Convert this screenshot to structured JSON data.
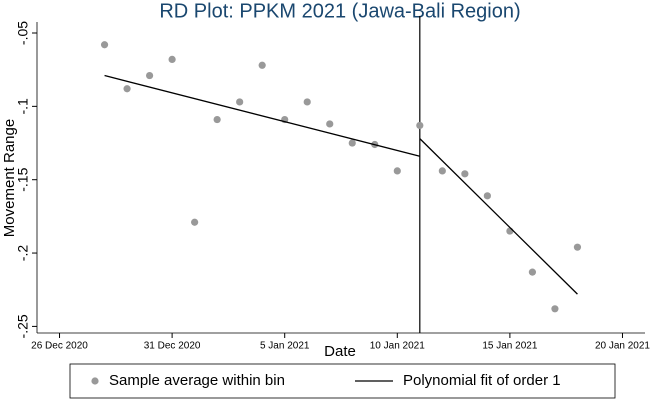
{
  "chart_data": {
    "type": "scatter",
    "title": "RD Plot: PPKM 2021 (Jawa-Bali Region)",
    "xlabel": "Date",
    "ylabel": "Movement Range",
    "xlim": [
      "2020-12-25",
      "2021-01-21"
    ],
    "xticks": [
      {
        "value": "2020-12-26",
        "label": "26 Dec 2020"
      },
      {
        "value": "2020-12-31",
        "label": "31 Dec 2020"
      },
      {
        "value": "2021-01-05",
        "label": "5 Jan 2021"
      },
      {
        "value": "2021-01-10",
        "label": "10 Jan 2021"
      },
      {
        "value": "2021-01-15",
        "label": "15 Jan 2021"
      },
      {
        "value": "2021-01-20",
        "label": "20 Jan 2021"
      }
    ],
    "ylim": [
      -0.2545,
      -0.0425
    ],
    "yticks": [
      {
        "value": -0.05,
        "label": "-.05"
      },
      {
        "value": -0.1,
        "label": "-.1"
      },
      {
        "value": -0.15,
        "label": "-.15"
      },
      {
        "value": -0.2,
        "label": "-.2"
      },
      {
        "value": -0.25,
        "label": "-.25"
      }
    ],
    "cutoff": "2021-01-11",
    "series": [
      {
        "name": "Sample average within bin",
        "color": "#999999",
        "kind": "points",
        "x": [
          "2020-12-28",
          "2020-12-29",
          "2020-12-30",
          "2020-12-31",
          "2021-01-01",
          "2021-01-02",
          "2021-01-03",
          "2021-01-04",
          "2021-01-05",
          "2021-01-06",
          "2021-01-07",
          "2021-01-08",
          "2021-01-09",
          "2021-01-10",
          "2021-01-11",
          "2021-01-12",
          "2021-01-13",
          "2021-01-14",
          "2021-01-15",
          "2021-01-16",
          "2021-01-17",
          "2021-01-18"
        ],
        "values": [
          -0.058,
          -0.088,
          -0.079,
          -0.068,
          -0.179,
          -0.109,
          -0.097,
          -0.072,
          -0.109,
          -0.097,
          -0.112,
          -0.125,
          -0.126,
          -0.144,
          -0.113,
          -0.144,
          -0.146,
          -0.161,
          -0.185,
          -0.213,
          -0.238,
          -0.196
        ]
      },
      {
        "name": "Polynomial fit of order 1",
        "color": "#000000",
        "kind": "line",
        "x": [
          "2020-12-28",
          "2021-01-11",
          null,
          "2021-01-11",
          "2021-01-18"
        ],
        "values": [
          -0.079,
          -0.134,
          null,
          -0.122,
          -0.228
        ]
      }
    ]
  }
}
